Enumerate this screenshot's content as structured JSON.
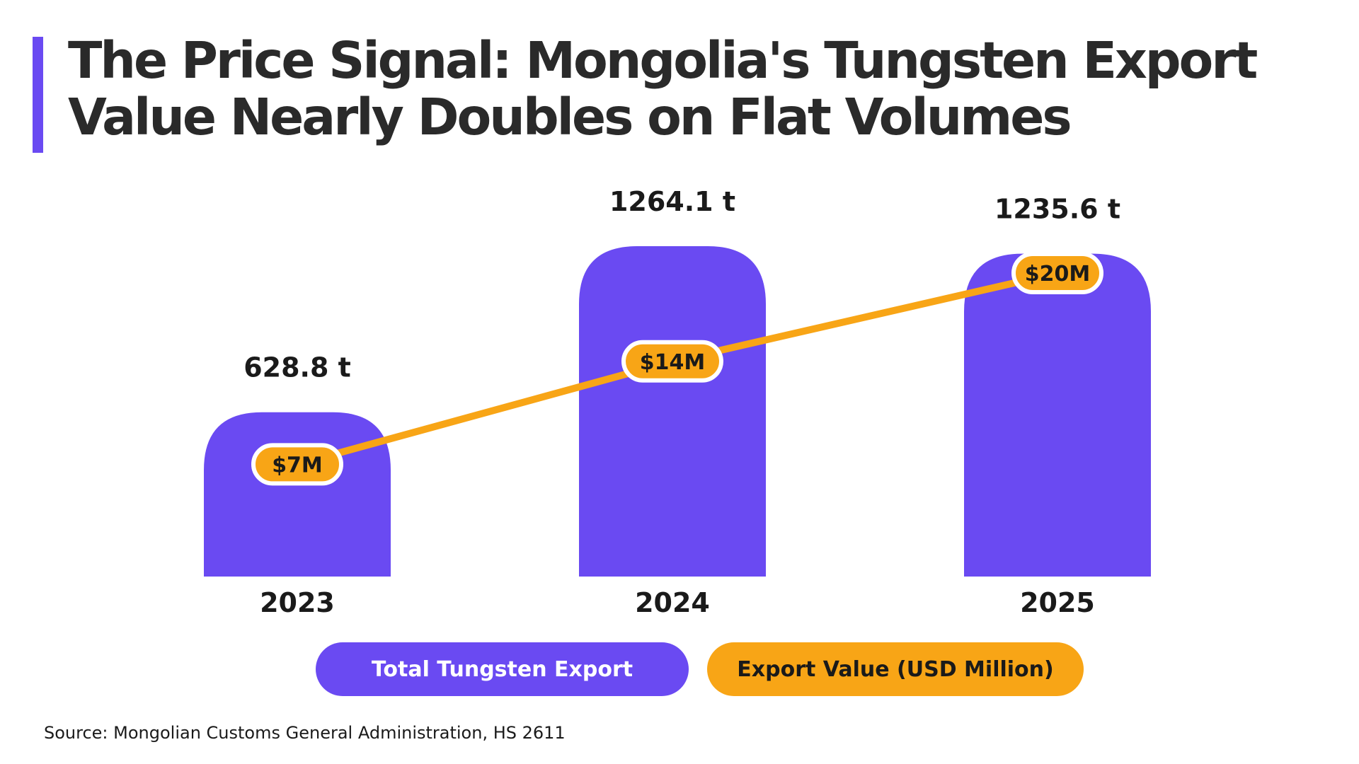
{
  "title": "The Price Signal: Mongolia's Tungsten Export Value Nearly Doubles on Flat Volumes",
  "source": "Source: Mongolian Customs General Administration, HS 2611",
  "colors": {
    "bar": "#6a4af2",
    "line": "#f8a516",
    "text": "#1a1a1a",
    "accent": "#6a4af2"
  },
  "chart_data": {
    "type": "bar",
    "categories": [
      "2023",
      "2024",
      "2025"
    ],
    "series": [
      {
        "name": "Total Tungsten Export",
        "type": "bar",
        "values": [
          628.8,
          1264.1,
          1235.6
        ],
        "labels": [
          "628.8 t",
          "1264.1 t",
          "1235.6 t"
        ]
      },
      {
        "name": "Export Value (USD Million)",
        "type": "line",
        "values": [
          7,
          14,
          20
        ],
        "labels": [
          "$7M",
          "$14M",
          "$20M"
        ]
      }
    ],
    "legend": [
      "Total Tungsten Export",
      "Export Value (USD Million)"
    ],
    "legend_position": "bottom",
    "grid": false
  }
}
